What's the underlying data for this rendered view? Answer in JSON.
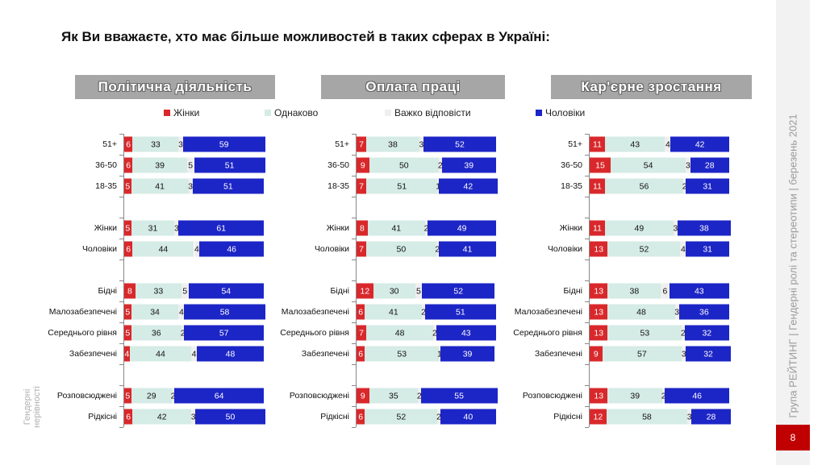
{
  "title": "Як Ви вважаєте,  хто має більше можливостей в таких сферах в Україні:",
  "sidebar_text": "Група РЕЙТИНГ | Гендерні ролі та стереотипи | березень 2021",
  "page_number": "8",
  "footer_label": "Гендерні нерівності",
  "colors": {
    "women": "#d9282b",
    "same": "#d5ebe5",
    "hard": "#efefef",
    "men": "#1c25c6"
  },
  "chart_data": {
    "type": "bar",
    "orientation": "horizontal-stacked-100",
    "legend": {
      "position": "top",
      "entries": [
        "Жінки",
        "Однаково",
        "Важко відповісти",
        "Чоловіки"
      ]
    },
    "categories": [
      "51+",
      "36-50",
      "18-35",
      "",
      "Жінки",
      "Чоловіки",
      "",
      "Бідні",
      "Малозабезпечені",
      "Середнього рівня",
      "Забезпечені",
      "",
      "Розповсюджені",
      "Рідкісні"
    ],
    "xlim": [
      0,
      100
    ],
    "panels": [
      {
        "title": "Політична діяльність",
        "series": [
          {
            "name": "Жінки",
            "values": [
              6,
              6,
              5,
              null,
              5,
              6,
              null,
              8,
              5,
              5,
              4,
              null,
              5,
              6
            ]
          },
          {
            "name": "Однаково",
            "values": [
              33,
              39,
              41,
              null,
              31,
              44,
              null,
              33,
              34,
              36,
              44,
              null,
              29,
              42
            ]
          },
          {
            "name": "Важко відповісти",
            "values": [
              3,
              5,
              3,
              null,
              3,
              4,
              null,
              5,
              4,
              2,
              4,
              null,
              2,
              3
            ]
          },
          {
            "name": "Чоловіки",
            "values": [
              59,
              51,
              51,
              null,
              61,
              46,
              null,
              54,
              58,
              57,
              48,
              null,
              64,
              50
            ]
          }
        ]
      },
      {
        "title": "Оплата праці",
        "series": [
          {
            "name": "Жінки",
            "values": [
              7,
              9,
              7,
              null,
              8,
              7,
              null,
              12,
              6,
              7,
              6,
              null,
              9,
              6
            ]
          },
          {
            "name": "Однаково",
            "values": [
              38,
              50,
              51,
              null,
              41,
              50,
              null,
              30,
              41,
              48,
              53,
              null,
              35,
              52
            ]
          },
          {
            "name": "Важко відповісти",
            "values": [
              3,
              2,
              1,
              null,
              2,
              2,
              null,
              5,
              2,
              2,
              1,
              null,
              2,
              2
            ]
          },
          {
            "name": "Чоловіки",
            "values": [
              52,
              39,
              42,
              null,
              49,
              41,
              null,
              52,
              51,
              43,
              39,
              null,
              55,
              40
            ]
          }
        ]
      },
      {
        "title": "Кар'єрне зростання",
        "series": [
          {
            "name": "Жінки",
            "values": [
              11,
              15,
              11,
              null,
              11,
              13,
              null,
              13,
              13,
              13,
              9,
              null,
              13,
              12
            ]
          },
          {
            "name": "Однаково",
            "values": [
              43,
              54,
              56,
              null,
              49,
              52,
              null,
              38,
              48,
              53,
              57,
              null,
              39,
              58
            ]
          },
          {
            "name": "Важко відповісти",
            "values": [
              4,
              3,
              2,
              null,
              3,
              4,
              null,
              6,
              3,
              2,
              3,
              null,
              2,
              3
            ]
          },
          {
            "name": "Чоловіки",
            "values": [
              42,
              28,
              31,
              null,
              38,
              31,
              null,
              43,
              36,
              32,
              32,
              null,
              46,
              28
            ]
          }
        ]
      }
    ]
  }
}
